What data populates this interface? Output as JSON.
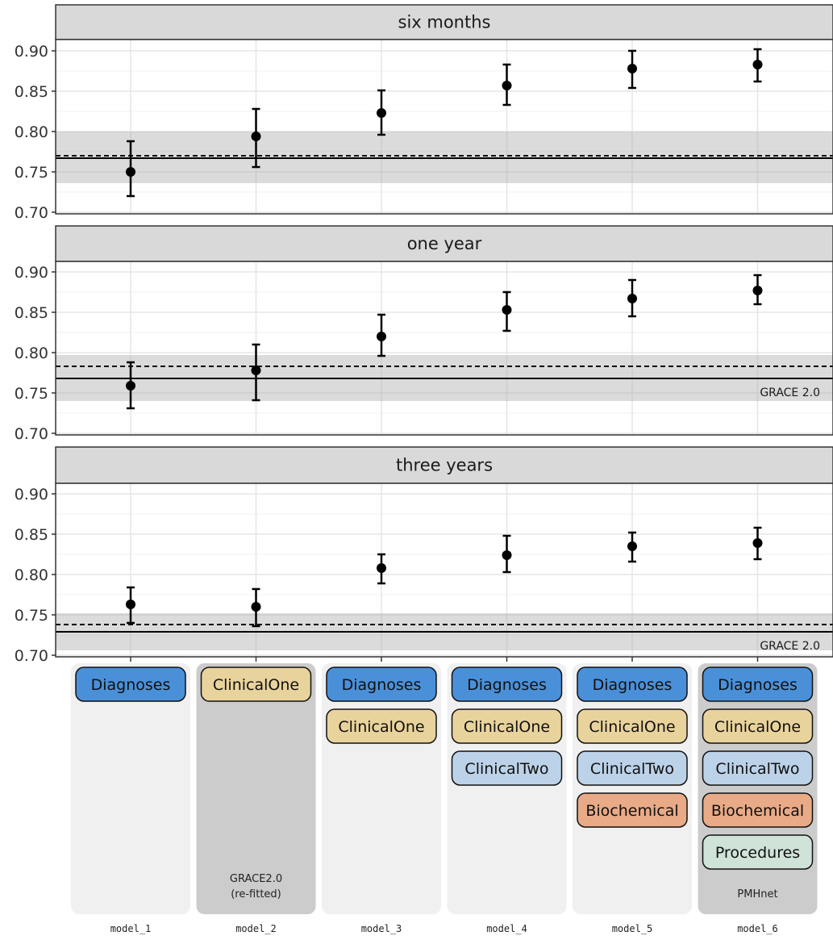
{
  "chart_data": {
    "type": "scatter",
    "subtype": "point-range with reference lines",
    "ylim": [
      0.7,
      0.91
    ],
    "yticks": [
      "0.70",
      "0.75",
      "0.80",
      "0.85",
      "0.90"
    ],
    "categories": [
      "model_1",
      "model_2",
      "model_3",
      "model_4",
      "model_5",
      "model_6"
    ],
    "grid": true,
    "panels": [
      {
        "strip": "six months",
        "points": [
          {
            "model": "model_1",
            "y": 0.75,
            "lower": 0.72,
            "upper": 0.788
          },
          {
            "model": "model_2",
            "y": 0.794,
            "lower": 0.756,
            "upper": 0.828
          },
          {
            "model": "model_3",
            "y": 0.823,
            "lower": 0.796,
            "upper": 0.851
          },
          {
            "model": "model_4",
            "y": 0.857,
            "lower": 0.833,
            "upper": 0.883
          },
          {
            "model": "model_5",
            "y": 0.878,
            "lower": 0.854,
            "upper": 0.9
          },
          {
            "model": "model_6",
            "y": 0.883,
            "lower": 0.862,
            "upper": 0.902
          }
        ],
        "reference_solid": 0.767,
        "reference_dashed": 0.77,
        "reference_band": [
          0.736,
          0.8
        ],
        "reference_label": ""
      },
      {
        "strip": "one year",
        "points": [
          {
            "model": "model_1",
            "y": 0.759,
            "lower": 0.731,
            "upper": 0.788
          },
          {
            "model": "model_2",
            "y": 0.778,
            "lower": 0.741,
            "upper": 0.81
          },
          {
            "model": "model_3",
            "y": 0.82,
            "lower": 0.796,
            "upper": 0.847
          },
          {
            "model": "model_4",
            "y": 0.853,
            "lower": 0.827,
            "upper": 0.875
          },
          {
            "model": "model_5",
            "y": 0.867,
            "lower": 0.845,
            "upper": 0.89
          },
          {
            "model": "model_6",
            "y": 0.877,
            "lower": 0.86,
            "upper": 0.896
          }
        ],
        "reference_solid": 0.768,
        "reference_dashed": 0.783,
        "reference_band": [
          0.74,
          0.797
        ],
        "reference_label": "GRACE 2.0"
      },
      {
        "strip": "three years",
        "points": [
          {
            "model": "model_1",
            "y": 0.763,
            "lower": 0.74,
            "upper": 0.784
          },
          {
            "model": "model_2",
            "y": 0.76,
            "lower": 0.736,
            "upper": 0.782
          },
          {
            "model": "model_3",
            "y": 0.808,
            "lower": 0.789,
            "upper": 0.825
          },
          {
            "model": "model_4",
            "y": 0.824,
            "lower": 0.803,
            "upper": 0.848
          },
          {
            "model": "model_5",
            "y": 0.835,
            "lower": 0.816,
            "upper": 0.852
          },
          {
            "model": "model_6",
            "y": 0.839,
            "lower": 0.819,
            "upper": 0.858
          }
        ],
        "reference_solid": 0.729,
        "reference_dashed": 0.738,
        "reference_band": [
          0.706,
          0.752
        ],
        "reference_label": "GRACE 2.0"
      }
    ],
    "feature_table": {
      "colors": {
        "Diagnoses": "#4A90D9",
        "ClinicalOne": "#E9D39C",
        "ClinicalTwo": "#BCD2E8",
        "Biochemical": "#E9AA87",
        "Procedures": "#CFE3D9"
      },
      "column_backgrounds": {
        "light": "#F0F0F0",
        "dark": "#CCCCCC"
      },
      "columns": [
        {
          "model": "model_1",
          "features": [
            "Diagnoses"
          ],
          "footer": [],
          "shade": "light"
        },
        {
          "model": "model_2",
          "features": [
            "ClinicalOne"
          ],
          "footer": [
            "GRACE2.0",
            "(re-fitted)"
          ],
          "shade": "dark"
        },
        {
          "model": "model_3",
          "features": [
            "Diagnoses",
            "ClinicalOne"
          ],
          "footer": [],
          "shade": "light"
        },
        {
          "model": "model_4",
          "features": [
            "Diagnoses",
            "ClinicalOne",
            "ClinicalTwo"
          ],
          "footer": [],
          "shade": "light"
        },
        {
          "model": "model_5",
          "features": [
            "Diagnoses",
            "ClinicalOne",
            "ClinicalTwo",
            "Biochemical"
          ],
          "footer": [],
          "shade": "light"
        },
        {
          "model": "model_6",
          "features": [
            "Diagnoses",
            "ClinicalOne",
            "ClinicalTwo",
            "Biochemical",
            "Procedures"
          ],
          "footer": [
            "PMHnet"
          ],
          "shade": "dark"
        }
      ]
    }
  }
}
